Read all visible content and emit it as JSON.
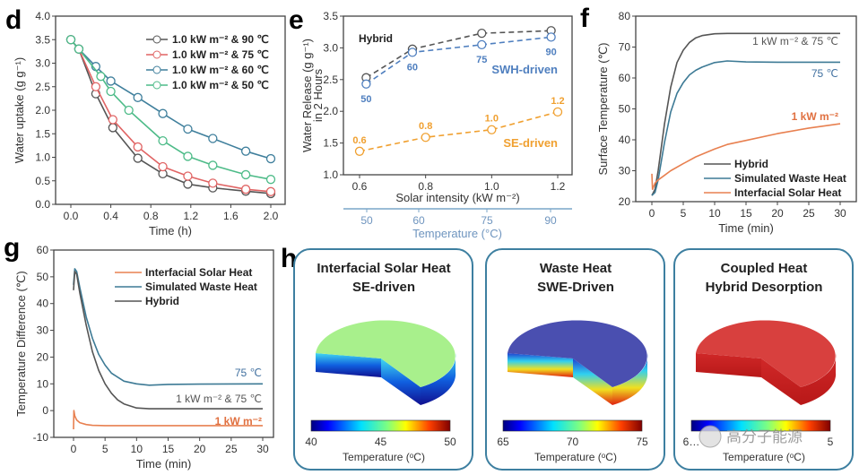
{
  "panel_letters": {
    "d": "d",
    "e": "e",
    "f": "f",
    "g": "g",
    "h": "h"
  },
  "chart_data": [
    {
      "id": "d",
      "type": "line",
      "xlabel": "Time (h)",
      "ylabel": "Water uptake (g g⁻¹)",
      "xlim": [
        0,
        2.0
      ],
      "ylim": [
        0,
        4.0
      ],
      "xticks": [
        "0.0",
        "0.4",
        "0.8",
        "1.2",
        "1.6",
        "2.0"
      ],
      "yticks": [
        "0.0",
        "0.5",
        "1.0",
        "1.5",
        "2.0",
        "2.5",
        "3.0",
        "3.5",
        "4.0"
      ],
      "legend": "top-right",
      "markers": "open-circle",
      "series": [
        {
          "name": "1.0 kW m⁻² & 90 ℃",
          "color": "#555555",
          "x": [
            0,
            0.08,
            0.25,
            0.42,
            0.67,
            0.92,
            1.17,
            1.42,
            1.75,
            2.0
          ],
          "y": [
            3.5,
            3.3,
            2.35,
            1.63,
            0.98,
            0.65,
            0.43,
            0.35,
            0.28,
            0.23
          ]
        },
        {
          "name": "1.0 kW m⁻² & 75 ℃",
          "color": "#e06464",
          "x": [
            0,
            0.08,
            0.25,
            0.42,
            0.67,
            0.92,
            1.17,
            1.42,
            1.75,
            2.0
          ],
          "y": [
            3.5,
            3.3,
            2.5,
            1.8,
            1.22,
            0.8,
            0.6,
            0.45,
            0.32,
            0.27
          ]
        },
        {
          "name": "1.0 kW m⁻² & 60 ℃",
          "color": "#3f7f9c",
          "x": [
            0,
            0.08,
            0.25,
            0.4,
            0.67,
            0.92,
            1.17,
            1.42,
            1.75,
            2.0
          ],
          "y": [
            3.5,
            3.3,
            2.93,
            2.62,
            2.27,
            1.93,
            1.6,
            1.4,
            1.13,
            0.97
          ]
        },
        {
          "name": "1.0 kW m⁻² & 50 ℃",
          "color": "#4dbb88",
          "x": [
            0,
            0.08,
            0.3,
            0.4,
            0.58,
            0.92,
            1.17,
            1.42,
            1.75,
            2.0
          ],
          "y": [
            3.5,
            3.3,
            2.72,
            2.4,
            2.0,
            1.35,
            1.02,
            0.83,
            0.63,
            0.53
          ]
        }
      ]
    },
    {
      "id": "e",
      "type": "line",
      "xlabel": "Solar intensity (kW m⁻²)",
      "ylabel": "Water Release (g g⁻¹)",
      "ylabel2": "in 2 Hours",
      "xlim": [
        0.55,
        1.25
      ],
      "ylim": [
        1.0,
        3.5
      ],
      "xticks": [
        "0.6",
        "0.8",
        "1.0",
        "1.2"
      ],
      "yticks": [
        "1.0",
        "1.5",
        "2.0",
        "2.5",
        "3.0",
        "3.5"
      ],
      "secondary_xlabel": "Temperature (°C)",
      "secondary_xticks": [
        "50",
        "60",
        "75",
        "90"
      ],
      "line_style": "dashed",
      "markers": "open-circle",
      "series": [
        {
          "name": "Hybrid",
          "color": "#555555",
          "x": [
            0.62,
            0.76,
            0.97,
            1.18
          ],
          "y": [
            2.53,
            2.98,
            3.23,
            3.27
          ],
          "point_labels": []
        },
        {
          "name": "SWH-driven",
          "color": "#4f7fbf",
          "x": [
            0.62,
            0.76,
            0.97,
            1.18
          ],
          "y": [
            2.43,
            2.93,
            3.05,
            3.17
          ],
          "point_labels": [
            "50",
            "60",
            "75",
            "90"
          ]
        },
        {
          "name": "SE-driven",
          "color": "#f0a030",
          "x": [
            0.6,
            0.8,
            1.0,
            1.2
          ],
          "y": [
            1.37,
            1.59,
            1.71,
            1.99
          ],
          "point_labels": [
            "0.6",
            "0.8",
            "1.0",
            "1.2"
          ]
        }
      ]
    },
    {
      "id": "f",
      "type": "line",
      "xlabel": "Time (min)",
      "ylabel": "Surface Temperature (℃)",
      "xlim": [
        0,
        30
      ],
      "ylim": [
        20,
        80
      ],
      "xticks": [
        "0",
        "5",
        "10",
        "15",
        "20",
        "25",
        "30"
      ],
      "yticks": [
        "20",
        "30",
        "40",
        "50",
        "60",
        "70",
        "80"
      ],
      "legend": "bottom-right",
      "series": [
        {
          "name": "Hybrid",
          "annotation": "1 kW m⁻² & 75 ℃",
          "color": "#555555",
          "x": [
            0,
            0.5,
            1,
            2,
            3,
            4,
            5,
            6,
            7,
            8,
            10,
            12,
            15,
            20,
            25,
            30
          ],
          "y": [
            22,
            24,
            30,
            45,
            57,
            65,
            69,
            71.5,
            73,
            73.7,
            74.3,
            74.4,
            74.4,
            74.4,
            74.4,
            74.4
          ]
        },
        {
          "name": "Simulated Waste Heat",
          "annotation": "75 ℃",
          "color": "#3d7a95",
          "x": [
            0,
            0.5,
            1,
            2,
            3,
            4,
            5,
            6,
            7,
            8,
            10,
            12,
            15,
            20,
            25,
            30
          ],
          "y": [
            22,
            23,
            27,
            39,
            49,
            55,
            58.5,
            61,
            62.5,
            63.5,
            65,
            65.5,
            65.2,
            65.1,
            65.1,
            65.1
          ]
        },
        {
          "name": "Interfacial Solar Heat",
          "annotation": "1 kW m⁻²",
          "color": "#e88050",
          "x": [
            0,
            0.1,
            0.5,
            1,
            2,
            3,
            5,
            7,
            10,
            12,
            15,
            20,
            25,
            30
          ],
          "y": [
            29,
            24,
            26,
            27,
            28.5,
            30,
            32.3,
            34.5,
            37,
            38.5,
            39.8,
            42,
            43.8,
            45.2
          ]
        }
      ]
    },
    {
      "id": "g",
      "type": "line",
      "xlabel": "Time (min)",
      "ylabel": "Temperature Difference (℃)",
      "xlim": [
        0,
        30
      ],
      "ylim": [
        -10,
        60
      ],
      "xticks": [
        "0",
        "5",
        "10",
        "15",
        "20",
        "25",
        "30"
      ],
      "yticks": [
        "-10",
        "0",
        "10",
        "20",
        "30",
        "40",
        "50",
        "60"
      ],
      "legend": "top-right",
      "series": [
        {
          "name": "Interfacial Solar Heat",
          "annotation": "1 kW m⁻²",
          "color": "#e88050",
          "x": [
            0,
            0.05,
            0.2,
            0.5,
            1,
            2,
            3,
            5,
            10,
            30
          ],
          "y": [
            -7,
            0,
            -2,
            -3.5,
            -4.5,
            -5.2,
            -5.5,
            -5.6,
            -5.6,
            -5.6
          ]
        },
        {
          "name": "Simulated Waste Heat",
          "annotation": "75 ℃",
          "color": "#3d7a95",
          "x": [
            0,
            0.2,
            0.5,
            1,
            2,
            3,
            4,
            5,
            6,
            7,
            8,
            10,
            12,
            15,
            20,
            30
          ],
          "y": [
            47,
            53,
            52,
            46,
            35,
            27,
            21,
            17,
            14,
            12.5,
            11,
            10,
            9.5,
            9.8,
            9.9,
            10
          ]
        },
        {
          "name": "Hybrid",
          "annotation": "1 kW m⁻² & 75 ℃",
          "color": "#555555",
          "x": [
            0,
            0.2,
            0.5,
            1,
            2,
            3,
            4,
            5,
            6,
            7,
            8,
            10,
            12,
            15,
            20,
            30
          ],
          "y": [
            45,
            52,
            51,
            44,
            32,
            22,
            15,
            10,
            6.5,
            4,
            2.5,
            1,
            0.7,
            0.7,
            0.7,
            0.7
          ]
        }
      ]
    }
  ],
  "panel_h": {
    "boxes": [
      {
        "title1": "Interfacial Solar Heat",
        "title2": "SE-driven",
        "colorbar_ticks": [
          "40",
          "45",
          "50"
        ],
        "colorbar_label": "Temperature (ᵒC)",
        "top_color": "#a8f08c",
        "side_colors": [
          "#40d8f0",
          "#1060e0",
          "#101090"
        ]
      },
      {
        "title1": "Waste Heat",
        "title2": "SWE-Driven",
        "colorbar_ticks": [
          "65",
          "70",
          "75"
        ],
        "colorbar_label": "Temperature (ᵒC)",
        "top_color": "#4a4fb0",
        "side_colors": [
          "#2040d0",
          "#30d0f0",
          "#f0e020",
          "#e02010"
        ]
      },
      {
        "title1": "Coupled Heat",
        "title2": "Hybrid Desorption",
        "colorbar_ticks": [
          "6…",
          "5"
        ],
        "colorbar_label": "Temperature (ᵒC)",
        "top_color": "#d8403e",
        "side_colors": [
          "#d02828",
          "#b81818"
        ]
      }
    ],
    "frame_color": "#3d7fa0"
  },
  "watermark": "高分子能源"
}
